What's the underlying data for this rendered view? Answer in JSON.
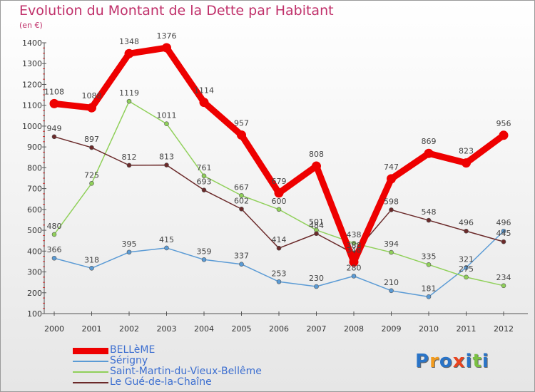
{
  "title": "Evolution du Montant de la Dette par Habitant",
  "subtitle": "(en €)",
  "logo": {
    "text": "Proxiti",
    "colors": [
      "#2a74c7",
      "#f29b1e",
      "#2a74c7",
      "#e8431f",
      "#2a74c7",
      "#7bc043",
      "#2a74c7"
    ]
  },
  "colors": {
    "title": "#c0306a",
    "legend_text": "#3d6fd0",
    "axis": "#555555"
  },
  "chart_data": {
    "type": "line",
    "title": "Evolution du Montant de la Dette par Habitant",
    "ylabel": "(en €)",
    "xlabel": "",
    "x": [
      "2000",
      "2001",
      "2002",
      "2003",
      "2004",
      "2005",
      "2006",
      "2007",
      "2008",
      "2009",
      "2010",
      "2011",
      "2012"
    ],
    "ylim": [
      100,
      1400
    ],
    "yticks": [
      100,
      200,
      300,
      400,
      500,
      600,
      700,
      800,
      900,
      1000,
      1100,
      1200,
      1300,
      1400
    ],
    "grid": false,
    "legend_position": "bottom-left",
    "series": [
      {
        "name": "BELLèME",
        "color": "#ee0000",
        "width": 9,
        "values": [
          1108,
          1088,
          1348,
          1376,
          1114,
          957,
          679,
          808,
          348,
          747,
          869,
          823,
          956
        ]
      },
      {
        "name": "Sérigny",
        "color": "#5b9bd5",
        "width": 1.5,
        "values": [
          366,
          318,
          395,
          415,
          359,
          337,
          253,
          230,
          280,
          210,
          181,
          321,
          496
        ]
      },
      {
        "name": "Saint-Martin-du-Vieux-Bellême",
        "color": "#90d05a",
        "width": 1.5,
        "values": [
          480,
          725,
          1119,
          1011,
          761,
          667,
          600,
          501,
          438,
          394,
          335,
          275,
          234
        ]
      },
      {
        "name": "Le Gué-de-la-Chaîne",
        "color": "#6b2a2a",
        "width": 1.5,
        "values": [
          949,
          897,
          812,
          813,
          693,
          602,
          414,
          484,
          388,
          598,
          548,
          496,
          445
        ]
      }
    ]
  }
}
